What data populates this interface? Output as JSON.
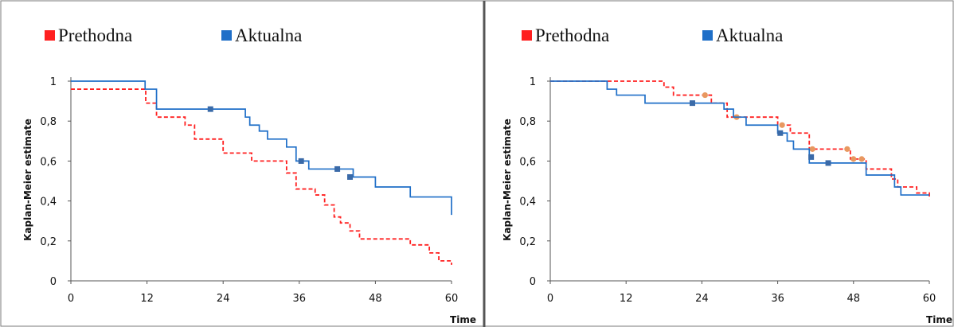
{
  "colors": {
    "prethodna": "#ff2020",
    "aktualna": "#1f6fc8",
    "censor_aktualna": "#3a6aa8",
    "censor_prethodna": "#e89860",
    "frame": "#7a7a7a",
    "axis": "#444444"
  },
  "chart_data": [
    {
      "type": "line",
      "step": true,
      "title": "",
      "xlabel": "Time",
      "ylabel": "Kaplan-Meier estimate",
      "xlim": [
        0,
        60
      ],
      "ylim": [
        0,
        1
      ],
      "xticks": [
        "0",
        "12",
        "24",
        "36",
        "48",
        "60"
      ],
      "yticks": [
        "0",
        "0,2",
        "0,4",
        "0,6",
        "0,8",
        "1"
      ],
      "legend": [
        "Prethodna",
        "Aktualna"
      ],
      "legend_position": "top-left",
      "series": [
        {
          "name": "Prethodna",
          "style": "dashed",
          "x": [
            0,
            11.8,
            13.5,
            18,
            19.5,
            24,
            28.5,
            34,
            35.5,
            38.5,
            40,
            41.5,
            42.5,
            44,
            45.5,
            53.5,
            56.5,
            58,
            60
          ],
          "y": [
            0.96,
            0.89,
            0.82,
            0.78,
            0.71,
            0.64,
            0.6,
            0.54,
            0.46,
            0.43,
            0.38,
            0.32,
            0.29,
            0.25,
            0.21,
            0.18,
            0.14,
            0.1,
            0.08
          ]
        },
        {
          "name": "Aktualna",
          "style": "solid",
          "x": [
            0,
            11.7,
            13.5,
            27.5,
            28.2,
            29.7,
            31,
            34,
            35.5,
            37.5,
            44.5,
            48,
            53.5,
            60
          ],
          "y": [
            1.0,
            0.96,
            0.86,
            0.82,
            0.78,
            0.75,
            0.71,
            0.67,
            0.6,
            0.56,
            0.52,
            0.47,
            0.42,
            0.37
          ],
          "end_y": 0.33,
          "censored": [
            [
              22,
              0.86
            ],
            [
              36.3,
              0.6
            ],
            [
              42,
              0.56
            ],
            [
              44,
              0.52
            ]
          ]
        }
      ]
    },
    {
      "type": "line",
      "step": true,
      "title": "",
      "xlabel": "Time",
      "ylabel": "Kaplan-Meier estimate",
      "xlim": [
        0,
        60
      ],
      "ylim": [
        0,
        1
      ],
      "xticks": [
        "0",
        "12",
        "24",
        "36",
        "48",
        "60"
      ],
      "yticks": [
        "0",
        "0,2",
        "0,4",
        "0,6",
        "0,8",
        "1"
      ],
      "legend": [
        "Prethodna",
        "Aktualna"
      ],
      "legend_position": "top-left",
      "series": [
        {
          "name": "Prethodna",
          "style": "dashed",
          "x": [
            0,
            18,
            19.5,
            25.5,
            28,
            36,
            38,
            41,
            47.5,
            50,
            54,
            55,
            58,
            60
          ],
          "y": [
            1.0,
            0.97,
            0.93,
            0.89,
            0.82,
            0.78,
            0.74,
            0.66,
            0.61,
            0.56,
            0.51,
            0.47,
            0.44,
            0.41
          ],
          "censored": [
            [
              24.5,
              0.93
            ],
            [
              29.5,
              0.82
            ],
            [
              36.7,
              0.78
            ],
            [
              41.5,
              0.66
            ],
            [
              47,
              0.66
            ],
            [
              48,
              0.61
            ],
            [
              49.3,
              0.61
            ]
          ]
        },
        {
          "name": "Aktualna",
          "style": "solid",
          "x": [
            0,
            9,
            10.5,
            15,
            24.5,
            27.5,
            29,
            31,
            36,
            37.5,
            38.5,
            41,
            50,
            54.5,
            55.5,
            60
          ],
          "y": [
            1.0,
            0.96,
            0.93,
            0.89,
            0.89,
            0.86,
            0.82,
            0.78,
            0.74,
            0.7,
            0.66,
            0.59,
            0.53,
            0.47,
            0.43,
            0.43
          ],
          "censored": [
            [
              22.5,
              0.89
            ],
            [
              36.4,
              0.74
            ],
            [
              41.3,
              0.62
            ],
            [
              44,
              0.59
            ]
          ]
        }
      ]
    }
  ]
}
